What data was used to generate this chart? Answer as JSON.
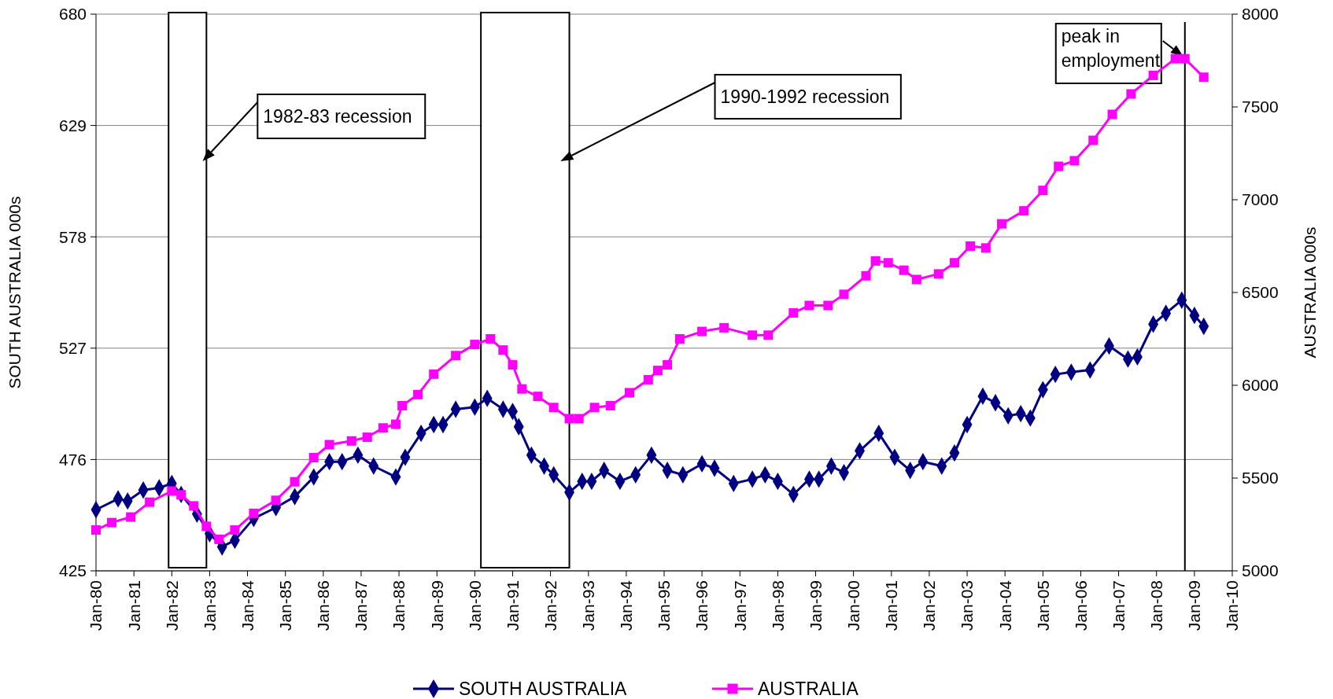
{
  "chart_data": {
    "type": "line",
    "xlim": [
      "1980-01",
      "2010-01"
    ],
    "xticks": [
      {
        "value": "1980-01",
        "label": "Jan-80"
      },
      {
        "value": "1981-01",
        "label": "Jan-81"
      },
      {
        "value": "1982-01",
        "label": "Jan-82"
      },
      {
        "value": "1983-01",
        "label": "Jan-83"
      },
      {
        "value": "1984-01",
        "label": "Jan-84"
      },
      {
        "value": "1985-01",
        "label": "Jan-85"
      },
      {
        "value": "1986-01",
        "label": "Jan-86"
      },
      {
        "value": "1987-01",
        "label": "Jan-87"
      },
      {
        "value": "1988-01",
        "label": "Jan-88"
      },
      {
        "value": "1989-01",
        "label": "Jan-89"
      },
      {
        "value": "1990-01",
        "label": "Jan-90"
      },
      {
        "value": "1991-01",
        "label": "Jan-91"
      },
      {
        "value": "1992-01",
        "label": "Jan-92"
      },
      {
        "value": "1993-01",
        "label": "Jan-93"
      },
      {
        "value": "1994-01",
        "label": "Jan-94"
      },
      {
        "value": "1995-01",
        "label": "Jan-95"
      },
      {
        "value": "1996-01",
        "label": "Jan-96"
      },
      {
        "value": "1997-01",
        "label": "Jan-97"
      },
      {
        "value": "1998-01",
        "label": "Jan-98"
      },
      {
        "value": "1999-01",
        "label": "Jan-99"
      },
      {
        "value": "2000-01",
        "label": "Jan-00"
      },
      {
        "value": "2001-01",
        "label": "Jan-01"
      },
      {
        "value": "2002-01",
        "label": "Jan-02"
      },
      {
        "value": "2003-01",
        "label": "Jan-03"
      },
      {
        "value": "2004-01",
        "label": "Jan-04"
      },
      {
        "value": "2005-01",
        "label": "Jan-05"
      },
      {
        "value": "2006-01",
        "label": "Jan-06"
      },
      {
        "value": "2007-01",
        "label": "Jan-07"
      },
      {
        "value": "2008-01",
        "label": "Jan-08"
      },
      {
        "value": "2009-01",
        "label": "Jan-09"
      },
      {
        "value": "2010-01",
        "label": "Jan-10"
      }
    ],
    "ylabel": "SOUTH AUSTRALIA 000s",
    "y2label": "AUSTRALIA 000s",
    "ylim": [
      425,
      680
    ],
    "yticks": [
      425,
      476,
      527,
      578,
      629,
      680
    ],
    "y2lim": [
      5000,
      8000
    ],
    "y2ticks": [
      5000,
      5500,
      6000,
      6500,
      7000,
      7500,
      8000
    ],
    "grid": "y",
    "legend": "bottom",
    "series": [
      {
        "name": "SOUTH AUSTRALIA",
        "color": "#000080",
        "marker": "diamond",
        "x": [
          "1980-01",
          "1980-08",
          "1980-11",
          "1981-04",
          "1981-09",
          "1982-01",
          "1982-04",
          "1982-09",
          "1983-01",
          "1983-05",
          "1983-09",
          "1984-03",
          "1984-10",
          "1985-04",
          "1985-10",
          "1986-03",
          "1986-07",
          "1986-12",
          "1987-05",
          "1987-12",
          "1988-03",
          "1988-08",
          "1988-12",
          "1989-03",
          "1989-07",
          "1990-01",
          "1990-05",
          "1990-10",
          "1991-01",
          "1991-03",
          "1991-07",
          "1991-11",
          "1992-02",
          "1992-07",
          "1992-11",
          "1993-02",
          "1993-06",
          "1993-11",
          "1994-04",
          "1994-09",
          "1995-02",
          "1995-07",
          "1996-01",
          "1996-05",
          "1996-11",
          "1997-05",
          "1997-09",
          "1998-01",
          "1998-06",
          "1998-11",
          "1999-02",
          "1999-06",
          "1999-10",
          "2000-03",
          "2000-09",
          "2001-02",
          "2001-07",
          "2001-11",
          "2002-05",
          "2002-09",
          "2003-01",
          "2003-06",
          "2003-10",
          "2004-02",
          "2004-06",
          "2004-09",
          "2005-01",
          "2005-05",
          "2005-10",
          "2006-04",
          "2006-10",
          "2007-04",
          "2007-07",
          "2007-12",
          "2008-04",
          "2008-09",
          "2009-01",
          "2009-04"
        ],
        "values": [
          453,
          458,
          457,
          462,
          463,
          465,
          460,
          451,
          442,
          436,
          439,
          449,
          454,
          459,
          468,
          475,
          475,
          478,
          473,
          468,
          477,
          488,
          492,
          492,
          499,
          500,
          504,
          499,
          498,
          491,
          478,
          473,
          469,
          461,
          466,
          466,
          471,
          466,
          469,
          478,
          471,
          469,
          474,
          472,
          465,
          467,
          469,
          466,
          460,
          467,
          467,
          473,
          470,
          480,
          488,
          477,
          471,
          475,
          473,
          479,
          492,
          505,
          502,
          496,
          497,
          495,
          508,
          515,
          516,
          517,
          528,
          522,
          523,
          538,
          543,
          549,
          542,
          537
        ]
      },
      {
        "name": "AUSTRALIA",
        "color": "#ff00ff",
        "marker": "square",
        "axis": "y2",
        "x": [
          "1980-01",
          "1980-06",
          "1980-12",
          "1981-06",
          "1982-01",
          "1982-04",
          "1982-08",
          "1982-12",
          "1983-04",
          "1983-09",
          "1984-03",
          "1984-10",
          "1985-04",
          "1985-10",
          "1986-03",
          "1986-10",
          "1987-03",
          "1987-08",
          "1987-12",
          "1988-02",
          "1988-07",
          "1988-12",
          "1989-07",
          "1990-01",
          "1990-06",
          "1990-10",
          "1991-01",
          "1991-04",
          "1991-09",
          "1992-02",
          "1992-07",
          "1992-10",
          "1993-03",
          "1993-08",
          "1994-02",
          "1994-08",
          "1994-11",
          "1995-02",
          "1995-06",
          "1996-01",
          "1996-08",
          "1997-05",
          "1997-10",
          "1998-06",
          "1998-11",
          "1999-05",
          "1999-10",
          "2000-05",
          "2000-08",
          "2000-12",
          "2001-05",
          "2001-09",
          "2002-04",
          "2002-09",
          "2003-02",
          "2003-07",
          "2003-12",
          "2004-07",
          "2005-01",
          "2005-06",
          "2005-11",
          "2006-05",
          "2006-11",
          "2007-05",
          "2007-12",
          "2008-07",
          "2008-10",
          "2009-04"
        ],
        "values": [
          5220,
          5260,
          5290,
          5370,
          5430,
          5410,
          5350,
          5240,
          5170,
          5220,
          5310,
          5380,
          5480,
          5610,
          5680,
          5700,
          5720,
          5770,
          5790,
          5890,
          5950,
          6060,
          6160,
          6220,
          6250,
          6190,
          6110,
          5980,
          5940,
          5880,
          5820,
          5820,
          5880,
          5890,
          5960,
          6030,
          6080,
          6110,
          6250,
          6290,
          6310,
          6270,
          6270,
          6390,
          6430,
          6430,
          6490,
          6590,
          6670,
          6660,
          6620,
          6570,
          6600,
          6660,
          6750,
          6740,
          6870,
          6940,
          7050,
          7180,
          7210,
          7320,
          7460,
          7570,
          7670,
          7760,
          7760,
          7660
        ]
      }
    ],
    "bands": [
      {
        "axis": "x",
        "from": "1981-12",
        "to": "1982-12",
        "label": "1982-83 recession",
        "color": "#ffffff"
      },
      {
        "axis": "x",
        "from": "1990-03",
        "to": "1992-07",
        "label": "1990-1992 recession",
        "color": "#ffffff"
      }
    ],
    "ref_lines": [
      {
        "axis": "x",
        "value": "2008-10",
        "label": "peak in employment"
      }
    ]
  }
}
